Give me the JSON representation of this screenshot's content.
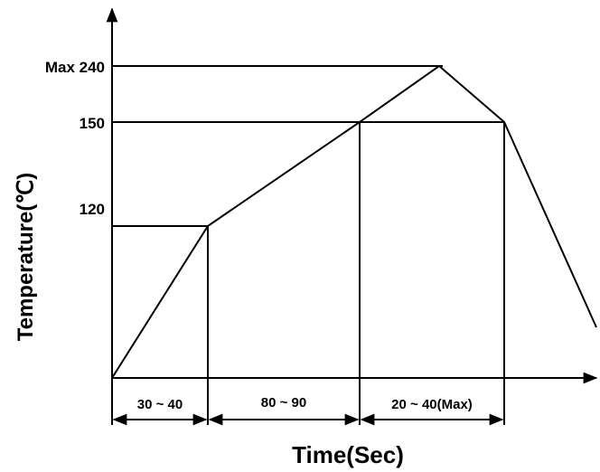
{
  "chart_data": {
    "type": "line",
    "title": "",
    "xlabel": "Time(Sec)",
    "ylabel": "Temperature(℃)",
    "y_ticks": [
      {
        "value": 240,
        "label": "Max 240"
      },
      {
        "value": 150,
        "label": "150"
      },
      {
        "value": 120,
        "label": "120"
      }
    ],
    "series": [
      {
        "points": [
          {
            "stage": 0,
            "temp": 0
          },
          {
            "stage": 1,
            "temp": 120
          },
          {
            "stage": 2,
            "temp": 150
          },
          {
            "stage": 2.55,
            "temp": 240
          },
          {
            "stage": 3,
            "temp": 150
          },
          {
            "stage": 3.65,
            "temp": 40
          }
        ]
      }
    ],
    "time_segments": [
      {
        "label": "30 ~ 40"
      },
      {
        "label": "80 ~ 90"
      },
      {
        "label": "20 ~ 40(Max)"
      }
    ],
    "grid": false,
    "color": "#000000"
  }
}
